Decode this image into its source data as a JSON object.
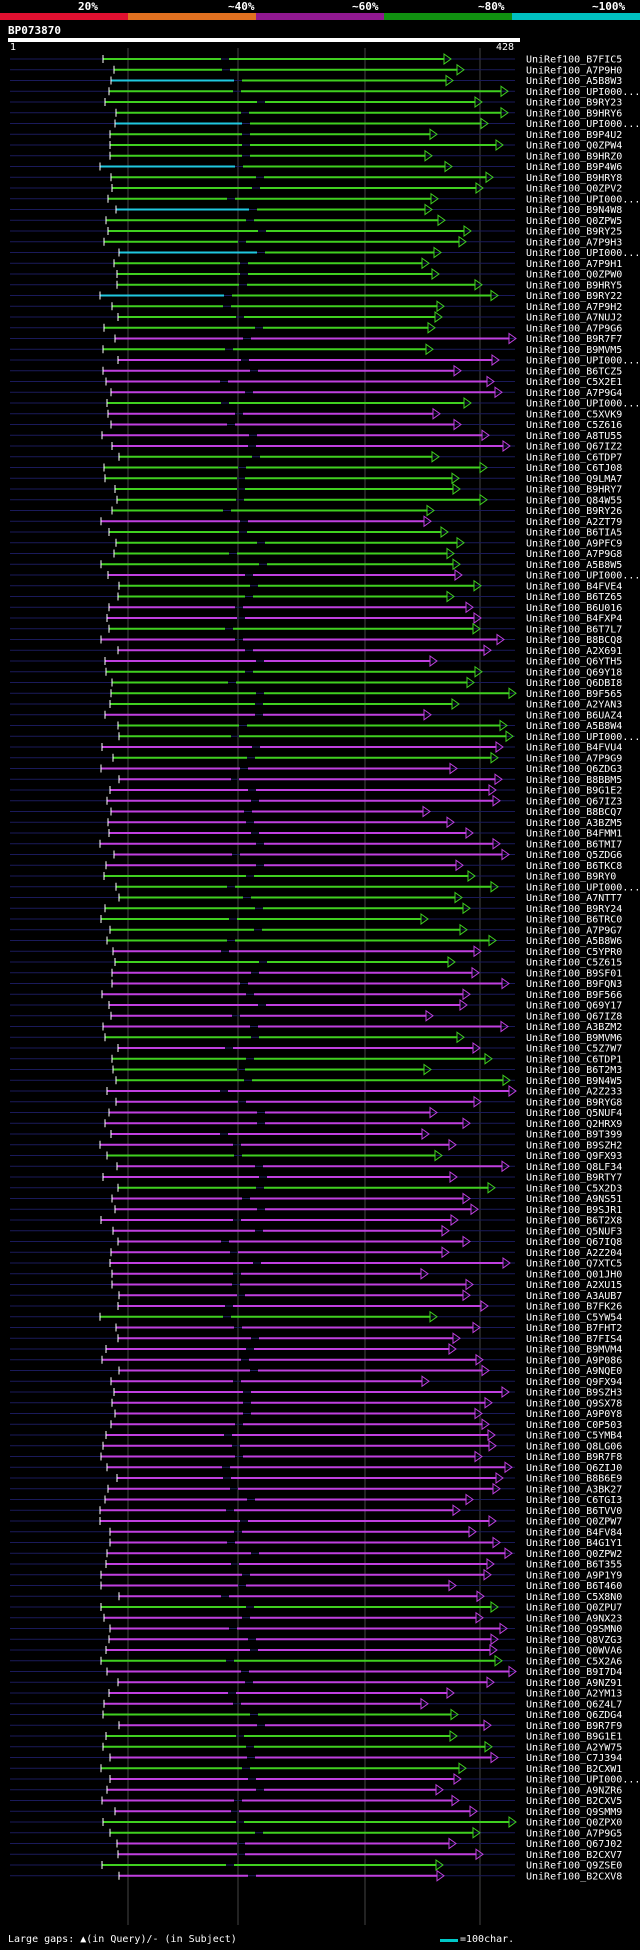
{
  "legend": {
    "labels": [
      "20%",
      "~40%",
      "~60%",
      "~80%",
      "~100%"
    ],
    "colors": [
      "#e01030",
      "#e07020",
      "#901890",
      "#109010",
      "#00c0c0"
    ]
  },
  "query": {
    "title": "BP073870",
    "start": "1",
    "end": "428"
  },
  "footer": {
    "gaps_text": "Large gaps: ▲(in Query)/- (in Subject)",
    "scale_text": "=100char."
  },
  "hits": [
    {
      "id": "UniRef100_B7FIC5",
      "c": "g"
    },
    {
      "id": "UniRef100_A7P9H0",
      "c": "g"
    },
    {
      "id": "UniRef100_A5B8W3",
      "c": "g"
    },
    {
      "id": "UniRef100_UPI000...",
      "c": "g"
    },
    {
      "id": "UniRef100_B9RY23",
      "c": "g"
    },
    {
      "id": "UniRef100_B9HRY6",
      "c": "g"
    },
    {
      "id": "UniRef100_UPI000...",
      "c": "g"
    },
    {
      "id": "UniRef100_B9P4U2",
      "c": "g"
    },
    {
      "id": "UniRef100_Q0ZPW4",
      "c": "g"
    },
    {
      "id": "UniRef100_B9HRZ0",
      "c": "g"
    },
    {
      "id": "UniRef100_B9P4W6",
      "c": "g"
    },
    {
      "id": "UniRef100_B9HRY8",
      "c": "g"
    },
    {
      "id": "UniRef100_Q0ZPV2",
      "c": "g"
    },
    {
      "id": "UniRef100_UPI000...",
      "c": "g"
    },
    {
      "id": "UniRef100_B9N4W8",
      "c": "g"
    },
    {
      "id": "UniRef100_Q0ZPW5",
      "c": "g"
    },
    {
      "id": "UniRef100_B9RY25",
      "c": "g"
    },
    {
      "id": "UniRef100_A7P9H3",
      "c": "g"
    },
    {
      "id": "UniRef100_UPI000...",
      "c": "g"
    },
    {
      "id": "UniRef100_A7P9H1",
      "c": "g"
    },
    {
      "id": "UniRef100_Q0ZPW0",
      "c": "g"
    },
    {
      "id": "UniRef100_B9HRY5",
      "c": "g"
    },
    {
      "id": "UniRef100_B9RY22",
      "c": "g"
    },
    {
      "id": "UniRef100_A7P9H2",
      "c": "g"
    },
    {
      "id": "UniRef100_A7NUJ2",
      "c": "g"
    },
    {
      "id": "UniRef100_A7P9G6",
      "c": "g"
    },
    {
      "id": "UniRef100_B9R7F7",
      "c": "m"
    },
    {
      "id": "UniRef100_B9MVM5",
      "c": "g"
    },
    {
      "id": "UniRef100_UPI000...",
      "c": "m"
    },
    {
      "id": "UniRef100_B6TCZ5",
      "c": "m"
    },
    {
      "id": "UniRef100_C5X2E1",
      "c": "m"
    },
    {
      "id": "UniRef100_A7P9G4",
      "c": "m"
    },
    {
      "id": "UniRef100_UPI000...",
      "c": "g"
    },
    {
      "id": "UniRef100_C5XVK9",
      "c": "m"
    },
    {
      "id": "UniRef100_C5Z616",
      "c": "m"
    },
    {
      "id": "UniRef100_A8TU55",
      "c": "m"
    },
    {
      "id": "UniRef100_Q67IZ2",
      "c": "m"
    },
    {
      "id": "UniRef100_C6TDP7",
      "c": "g"
    },
    {
      "id": "UniRef100_C6TJ08",
      "c": "g"
    },
    {
      "id": "UniRef100_Q9LMA7",
      "c": "g"
    },
    {
      "id": "UniRef100_B9HRY7",
      "c": "g"
    },
    {
      "id": "UniRef100_Q84W55",
      "c": "g"
    },
    {
      "id": "UniRef100_B9RY26",
      "c": "g"
    },
    {
      "id": "UniRef100_A2ZT79",
      "c": "m"
    },
    {
      "id": "UniRef100_B6TIA5",
      "c": "g"
    },
    {
      "id": "UniRef100_A9PFC9",
      "c": "g"
    },
    {
      "id": "UniRef100_A7P9G8",
      "c": "g"
    },
    {
      "id": "UniRef100_A5B8W5",
      "c": "g"
    },
    {
      "id": "UniRef100_UPI000...",
      "c": "m"
    },
    {
      "id": "UniRef100_B4FVE4",
      "c": "g"
    },
    {
      "id": "UniRef100_B6TZ65",
      "c": "g"
    },
    {
      "id": "UniRef100_B6U016",
      "c": "m"
    },
    {
      "id": "UniRef100_B4FXP4",
      "c": "m"
    },
    {
      "id": "UniRef100_B6T7L7",
      "c": "g"
    },
    {
      "id": "UniRef100_B8BCQ8",
      "c": "m"
    },
    {
      "id": "UniRef100_A2X691",
      "c": "m"
    },
    {
      "id": "UniRef100_Q6YTH5",
      "c": "m"
    },
    {
      "id": "UniRef100_Q69Y18",
      "c": "g"
    },
    {
      "id": "UniRef100_Q6DBI8",
      "c": "g"
    },
    {
      "id": "UniRef100_B9F565",
      "c": "g"
    },
    {
      "id": "UniRef100_A2YAN3",
      "c": "g"
    },
    {
      "id": "UniRef100_B6UAZ4",
      "c": "m"
    },
    {
      "id": "UniRef100_A5B8W4",
      "c": "g"
    },
    {
      "id": "UniRef100_UPI000...",
      "c": "g"
    },
    {
      "id": "UniRef100_B4FVU4",
      "c": "m"
    },
    {
      "id": "UniRef100_A7P9G9",
      "c": "g"
    },
    {
      "id": "UniRef100_Q6ZDG3",
      "c": "m"
    },
    {
      "id": "UniRef100_B8BBM5",
      "c": "m"
    },
    {
      "id": "UniRef100_B9G1E2",
      "c": "m"
    },
    {
      "id": "UniRef100_Q67IZ3",
      "c": "m"
    },
    {
      "id": "UniRef100_B8BCQ7",
      "c": "m"
    },
    {
      "id": "UniRef100_A3BZM5",
      "c": "m"
    },
    {
      "id": "UniRef100_B4FMM1",
      "c": "m"
    },
    {
      "id": "UniRef100_B6TMI7",
      "c": "m"
    },
    {
      "id": "UniRef100_Q5ZDG6",
      "c": "m"
    },
    {
      "id": "UniRef100_B6TKC8",
      "c": "m"
    },
    {
      "id": "UniRef100_B9RY0",
      "c": "g"
    },
    {
      "id": "UniRef100_UPI000...",
      "c": "g"
    },
    {
      "id": "UniRef100_A7NTT7",
      "c": "g"
    },
    {
      "id": "UniRef100_B9RY24",
      "c": "g"
    },
    {
      "id": "UniRef100_B6TRC0",
      "c": "g"
    },
    {
      "id": "UniRef100_A7P9G7",
      "c": "g"
    },
    {
      "id": "UniRef100_A5B8W6",
      "c": "g"
    },
    {
      "id": "UniRef100_C5YPR0",
      "c": "m"
    },
    {
      "id": "UniRef100_C5Z615",
      "c": "g"
    },
    {
      "id": "UniRef100_B9SF01",
      "c": "m"
    },
    {
      "id": "UniRef100_B9FQN3",
      "c": "m"
    },
    {
      "id": "UniRef100_B9F566",
      "c": "m"
    },
    {
      "id": "UniRef100_Q69Y17",
      "c": "m"
    },
    {
      "id": "UniRef100_Q67IZ8",
      "c": "m"
    },
    {
      "id": "UniRef100_A3BZM2",
      "c": "m"
    },
    {
      "id": "UniRef100_B9MVM6",
      "c": "g"
    },
    {
      "id": "UniRef100_C5Z7W7",
      "c": "m"
    },
    {
      "id": "UniRef100_C6TDP1",
      "c": "g"
    },
    {
      "id": "UniRef100_B6T2M3",
      "c": "g"
    },
    {
      "id": "UniRef100_B9N4W5",
      "c": "g"
    },
    {
      "id": "UniRef100_A2Z233",
      "c": "m"
    },
    {
      "id": "UniRef100_B9RYG8",
      "c": "m"
    },
    {
      "id": "UniRef100_Q5NUF4",
      "c": "m"
    },
    {
      "id": "UniRef100_Q2HRX9",
      "c": "m"
    },
    {
      "id": "UniRef100_B9T399",
      "c": "m"
    },
    {
      "id": "UniRef100_B9SZH2",
      "c": "m"
    },
    {
      "id": "UniRef100_Q9FX93",
      "c": "g"
    },
    {
      "id": "UniRef100_Q8LF34",
      "c": "m"
    },
    {
      "id": "UniRef100_B9RTY7",
      "c": "m"
    },
    {
      "id": "UniRef100_C5X2D3",
      "c": "g"
    },
    {
      "id": "UniRef100_A9NS51",
      "c": "m"
    },
    {
      "id": "UniRef100_B9SJR1",
      "c": "m"
    },
    {
      "id": "UniRef100_B6T2X8",
      "c": "m"
    },
    {
      "id": "UniRef100_Q5NUF3",
      "c": "m"
    },
    {
      "id": "UniRef100_Q67IQ8",
      "c": "m"
    },
    {
      "id": "UniRef100_A2Z204",
      "c": "m"
    },
    {
      "id": "UniRef100_Q7XTC5",
      "c": "m"
    },
    {
      "id": "UniRef100_Q01JH0",
      "c": "m"
    },
    {
      "id": "UniRef100_A2XU15",
      "c": "m"
    },
    {
      "id": "UniRef100_A3AUB7",
      "c": "m"
    },
    {
      "id": "UniRef100_B7FK26",
      "c": "m"
    },
    {
      "id": "UniRef100_C5YW54",
      "c": "g"
    },
    {
      "id": "UniRef100_B7FHT2",
      "c": "m"
    },
    {
      "id": "UniRef100_B7FIS4",
      "c": "m"
    },
    {
      "id": "UniRef100_B9MVM4",
      "c": "m"
    },
    {
      "id": "UniRef100_A9P086",
      "c": "m"
    },
    {
      "id": "UniRef100_A9NQE0",
      "c": "m"
    },
    {
      "id": "UniRef100_Q9FX94",
      "c": "m"
    },
    {
      "id": "UniRef100_B9SZH3",
      "c": "m"
    },
    {
      "id": "UniRef100_Q9SX78",
      "c": "m"
    },
    {
      "id": "UniRef100_A9P0Y8",
      "c": "m"
    },
    {
      "id": "UniRef100_C0P503",
      "c": "m"
    },
    {
      "id": "UniRef100_C5YMB4",
      "c": "m"
    },
    {
      "id": "UniRef100_Q8LG06",
      "c": "m"
    },
    {
      "id": "UniRef100_B9R7F8",
      "c": "m"
    },
    {
      "id": "UniRef100_Q6ZIJ0",
      "c": "m"
    },
    {
      "id": "UniRef100_B8B6E9",
      "c": "m"
    },
    {
      "id": "UniRef100_A3BK27",
      "c": "m"
    },
    {
      "id": "UniRef100_C6TGI3",
      "c": "m"
    },
    {
      "id": "UniRef100_B6TVV0",
      "c": "m"
    },
    {
      "id": "UniRef100_Q0ZPW7",
      "c": "m"
    },
    {
      "id": "UniRef100_B4FV84",
      "c": "m"
    },
    {
      "id": "UniRef100_B4G1Y1",
      "c": "m"
    },
    {
      "id": "UniRef100_Q0ZPW2",
      "c": "m"
    },
    {
      "id": "UniRef100_B6T355",
      "c": "m"
    },
    {
      "id": "UniRef100_A9P1Y9",
      "c": "m"
    },
    {
      "id": "UniRef100_B6T460",
      "c": "m"
    },
    {
      "id": "UniRef100_C5X8N0",
      "c": "m"
    },
    {
      "id": "UniRef100_Q0ZPU7",
      "c": "g"
    },
    {
      "id": "UniRef100_A9NX23",
      "c": "m"
    },
    {
      "id": "UniRef100_Q9SMN0",
      "c": "m"
    },
    {
      "id": "UniRef100_Q8VZG3",
      "c": "m"
    },
    {
      "id": "UniRef100_Q0WVA6",
      "c": "m"
    },
    {
      "id": "UniRef100_C5X2A6",
      "c": "g"
    },
    {
      "id": "UniRef100_B9I7D4",
      "c": "m"
    },
    {
      "id": "UniRef100_A9NZ91",
      "c": "m"
    },
    {
      "id": "UniRef100_A2YM13",
      "c": "m"
    },
    {
      "id": "UniRef100_Q6Z4L7",
      "c": "m"
    },
    {
      "id": "UniRef100_Q6ZDG4",
      "c": "g"
    },
    {
      "id": "UniRef100_B9R7F9",
      "c": "m"
    },
    {
      "id": "UniRef100_B9G1E1",
      "c": "g"
    },
    {
      "id": "UniRef100_A2YW75",
      "c": "g"
    },
    {
      "id": "UniRef100_C7J394",
      "c": "m"
    },
    {
      "id": "UniRef100_B2CXW1",
      "c": "g"
    },
    {
      "id": "UniRef100_UPI000...",
      "c": "m"
    },
    {
      "id": "UniRef100_A9NZR6",
      "c": "m"
    },
    {
      "id": "UniRef100_B2CXV5",
      "c": "m"
    },
    {
      "id": "UniRef100_Q9SMM9",
      "c": "m"
    },
    {
      "id": "UniRef100_Q0ZPX0",
      "c": "g"
    },
    {
      "id": "UniRef100_A7P9G5",
      "c": "g"
    },
    {
      "id": "UniRef100_Q67J02",
      "c": "m"
    },
    {
      "id": "UniRef100_B2CXV7",
      "c": "m"
    },
    {
      "id": "UniRef100_Q9ZSE0",
      "c": "g"
    },
    {
      "id": "UniRef100_B2CXV8",
      "c": "m"
    }
  ]
}
